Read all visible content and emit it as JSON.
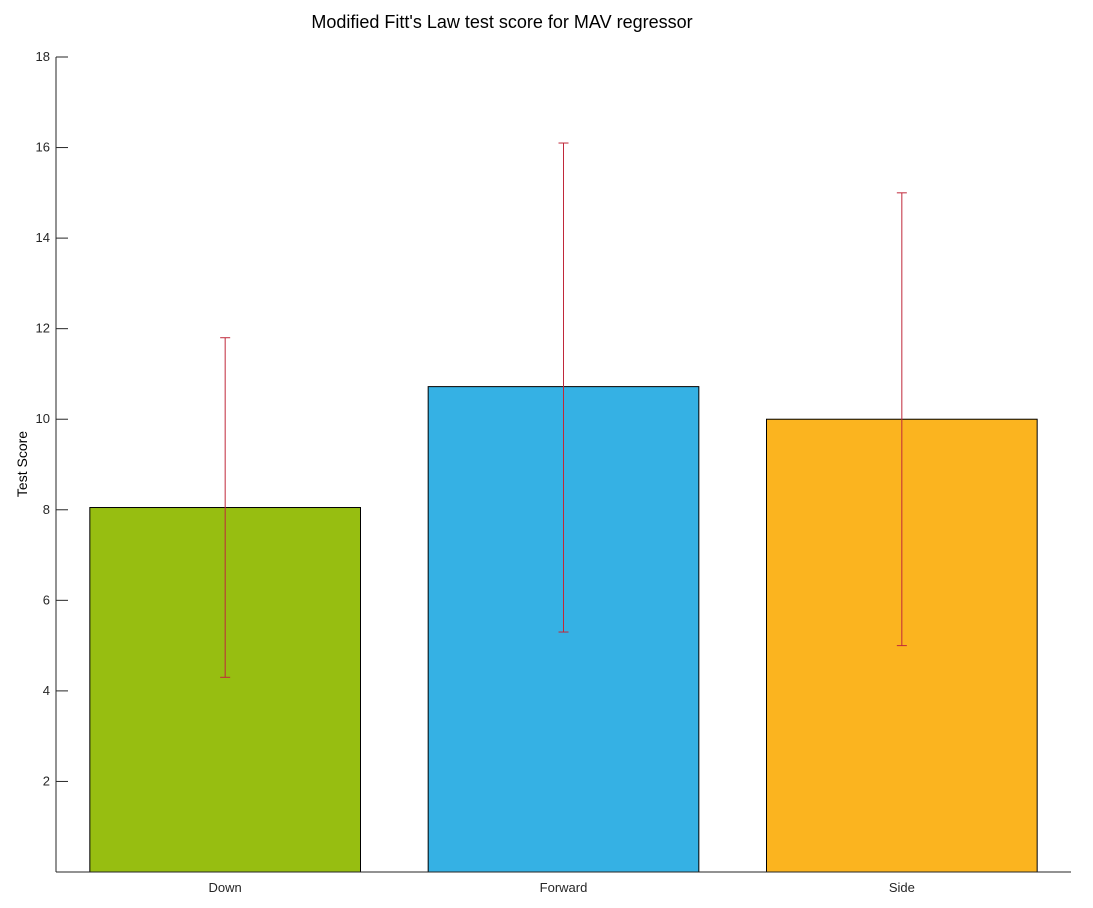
{
  "chart_data": {
    "type": "bar",
    "title": "Modified Fitt's Law test score for MAV regressor",
    "xlabel": "",
    "ylabel": "Test Score",
    "categories": [
      "Down",
      "Forward",
      "Side"
    ],
    "values": [
      8.05,
      10.72,
      10.0
    ],
    "error_low": [
      4.3,
      5.3,
      5.0
    ],
    "error_high": [
      11.8,
      16.1,
      15.0
    ],
    "colors": [
      "#97be11",
      "#35b1e4",
      "#fbb41f"
    ],
    "error_color": "#c0283a",
    "ylim": [
      0,
      18
    ],
    "yticks": [
      2,
      4,
      6,
      8,
      10,
      12,
      14,
      16,
      18
    ],
    "grid": false,
    "legend": "none"
  }
}
